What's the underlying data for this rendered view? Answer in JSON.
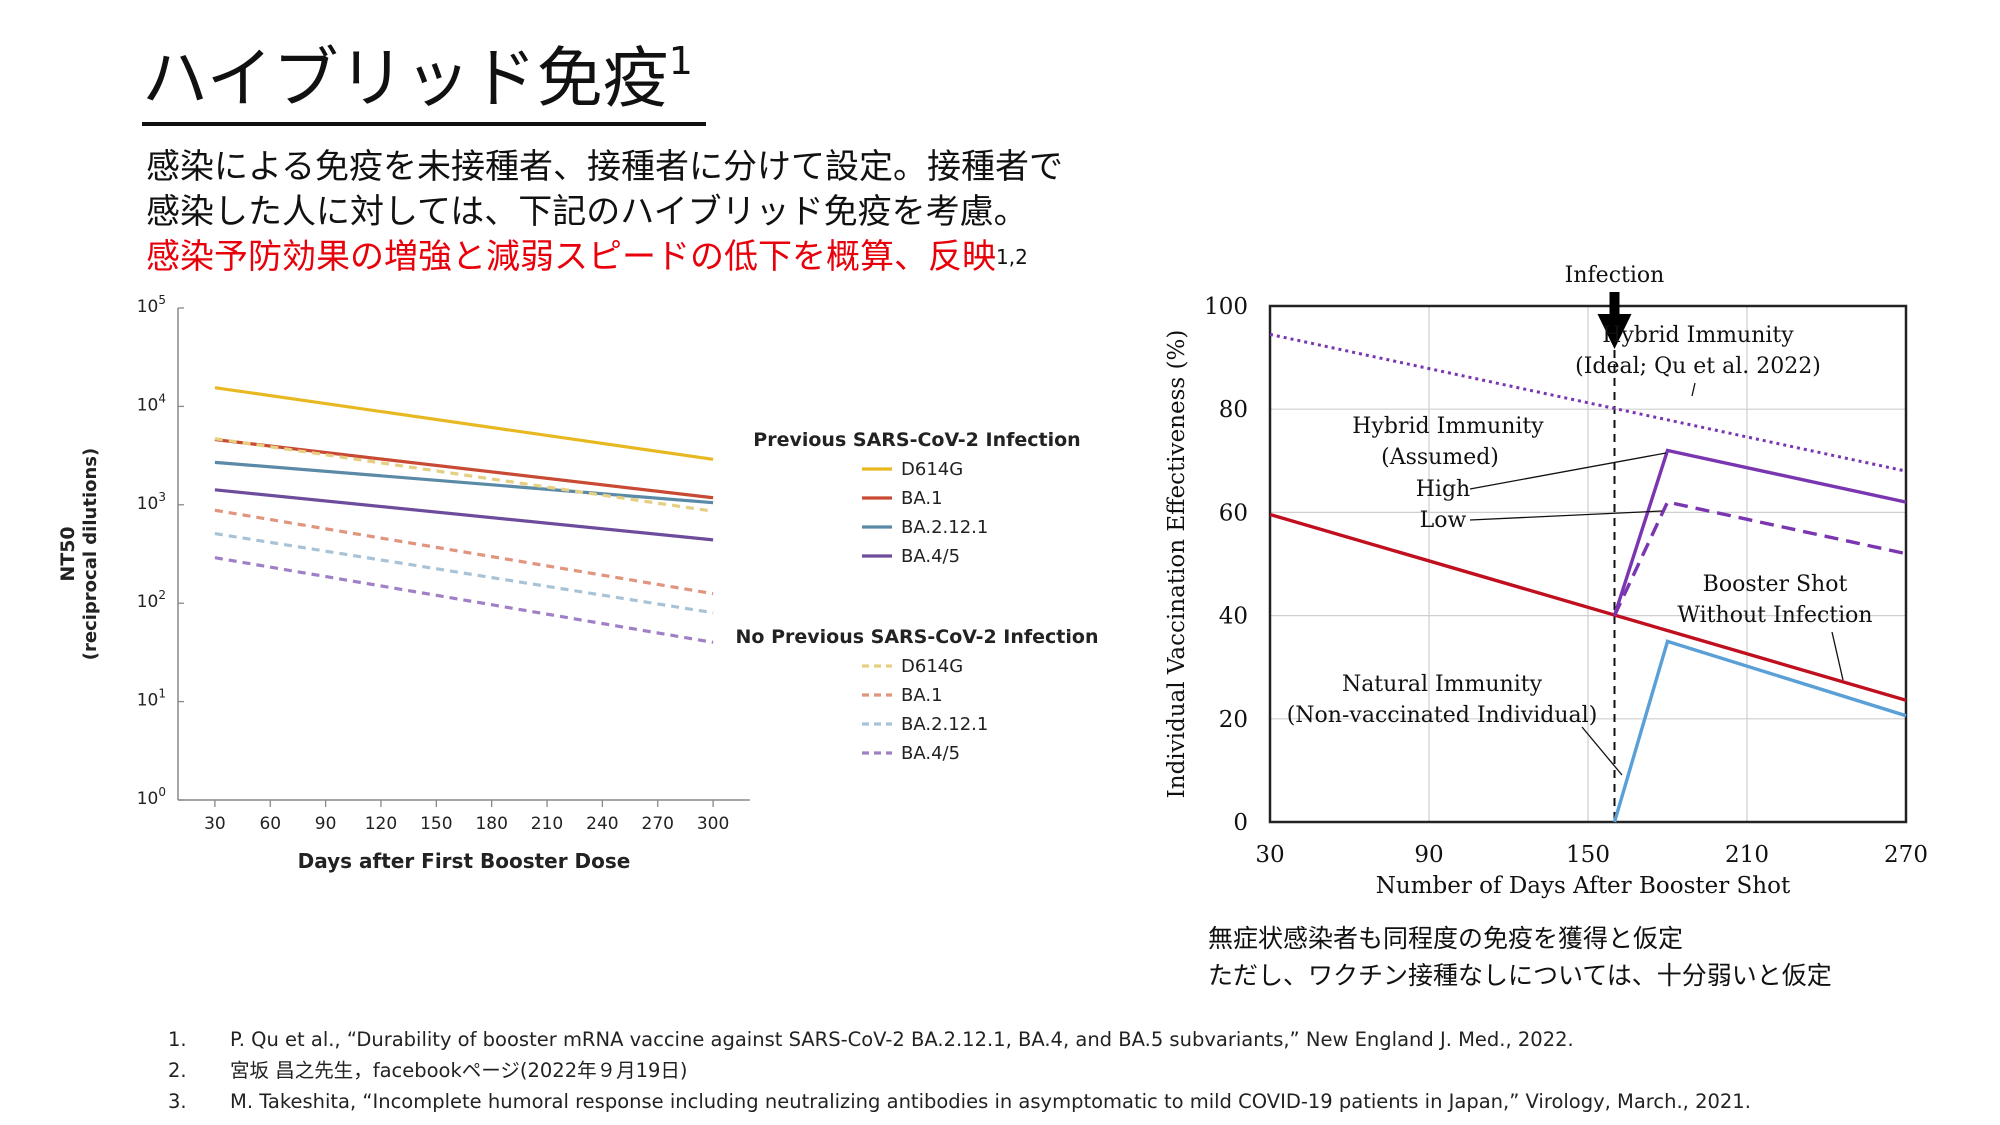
{
  "header": {
    "title": "ハイブリッド免疫",
    "title_sup": "1",
    "intro_line1": "感染による免疫を未接種者、接種者に分けて設定。接種者で",
    "intro_line2": "感染した人に対しては、下記のハイブリッド免疫を考慮。",
    "intro_line3_red": "感染予防効果の増強と減弱スピードの低下を概算、反映",
    "intro_line3_sup": "1,2"
  },
  "chart_data": [
    {
      "type": "line",
      "xlabel": "Days after First Booster Dose",
      "ylabel": "NT50",
      "ylabel2": "(reciprocal dilutions)",
      "y_scale": "log",
      "xlim": [
        10,
        320
      ],
      "ylim": [
        1,
        100000
      ],
      "x_ticks": [
        30,
        60,
        90,
        120,
        150,
        180,
        210,
        240,
        270,
        300
      ],
      "y_tick_base": "10",
      "y_tick_exps": [
        "0",
        "1",
        "2",
        "3",
        "4",
        "5"
      ],
      "legend_groups": [
        {
          "title": "Previous SARS-CoV-2 Infection",
          "style": "solid"
        },
        {
          "title": "No Previous SARS-CoV-2 Infection",
          "style": "dashed"
        }
      ],
      "series": [
        {
          "name": "D614G",
          "group": 0,
          "color": "#e8b820",
          "x": [
            30,
            300
          ],
          "y": [
            15500,
            2900
          ]
        },
        {
          "name": "BA.1",
          "group": 0,
          "color": "#c94a34",
          "x": [
            30,
            300
          ],
          "y": [
            4600,
            1180
          ]
        },
        {
          "name": "BA.2.12.1",
          "group": 0,
          "color": "#5a8aa6",
          "x": [
            30,
            300
          ],
          "y": [
            2700,
            1050
          ]
        },
        {
          "name": "BA.4/5",
          "group": 0,
          "color": "#6e4c9c",
          "x": [
            30,
            300
          ],
          "y": [
            1420,
            440
          ]
        },
        {
          "name": "D614G",
          "group": 1,
          "color": "#e6cf82",
          "x": [
            30,
            300
          ],
          "y": [
            4700,
            860
          ]
        },
        {
          "name": "BA.1",
          "group": 1,
          "color": "#e0957e",
          "x": [
            30,
            300
          ],
          "y": [
            880,
            125
          ]
        },
        {
          "name": "BA.2.12.1",
          "group": 1,
          "color": "#a9c3d6",
          "x": [
            30,
            300
          ],
          "y": [
            510,
            80
          ]
        },
        {
          "name": "BA.4/5",
          "group": 1,
          "color": "#a080c4",
          "x": [
            30,
            300
          ],
          "y": [
            290,
            40
          ]
        }
      ]
    },
    {
      "type": "line",
      "xlabel": "Number of Days After Booster Shot",
      "ylabel": "Individual Vaccination Effectiveness (%)",
      "xlim": [
        30,
        270
      ],
      "ylim": [
        0,
        100
      ],
      "x_ticks": [
        30,
        90,
        150,
        210,
        270
      ],
      "y_ticks": [
        0,
        20,
        40,
        60,
        80,
        100
      ],
      "grid": true,
      "event": {
        "label": "Infection",
        "x": 160
      },
      "series": [
        {
          "id": "natural",
          "color": "#c0101f",
          "style": "solid",
          "x": [
            30,
            270
          ],
          "y": [
            59.6,
            23.6
          ]
        },
        {
          "id": "booster",
          "color": "#5a9fd6",
          "style": "solid",
          "x": [
            160,
            180,
            270
          ],
          "y": [
            0,
            35,
            20.6
          ]
        },
        {
          "id": "hybrid-high",
          "color": "#7a35b0",
          "style": "solid",
          "x": [
            160,
            180,
            270
          ],
          "y": [
            40,
            72,
            62
          ]
        },
        {
          "id": "hybrid-low",
          "color": "#7a35b0",
          "style": "dashed",
          "x": [
            160,
            180,
            270
          ],
          "y": [
            40,
            62,
            52
          ]
        },
        {
          "id": "hybrid-ideal",
          "color": "#7a35b0",
          "style": "dotted",
          "x": [
            30,
            270
          ],
          "y": [
            94.5,
            68
          ]
        }
      ],
      "annotations": {
        "hybrid_ideal_1": "Hybrid Immunity",
        "hybrid_ideal_2": "(Ideal; Qu et al. 2022)",
        "hybrid_assumed_1": "Hybrid Immunity",
        "hybrid_assumed_2": "(Assumed)",
        "high": "High",
        "low": "Low",
        "booster_1": "Booster Shot",
        "booster_2": "Without Infection",
        "natural_1": "Natural Immunity",
        "natural_2": "(Non-vaccinated Individual)"
      }
    }
  ],
  "note": {
    "line1": "無症状感染者も同程度の免疫を獲得と仮定",
    "line2": "ただし、ワクチン接種なしについては、十分弱いと仮定"
  },
  "references": [
    {
      "num": "1.",
      "text": "P. Qu et al., “Durability of booster mRNA vaccine against SARS-CoV-2 BA.2.12.1, BA.4, and BA.5 subvariants,” New England J.  Med., 2022."
    },
    {
      "num": "2.",
      "text": "宮坂 昌之先生，facebookページ(2022年９月19日)"
    },
    {
      "num": "3.",
      "text": "M. Takeshita, “Incomplete humoral response including neutralizing antibodies in asymptomatic to mild COVID-19 patients in Japan,” Virology, March., 2021."
    }
  ]
}
